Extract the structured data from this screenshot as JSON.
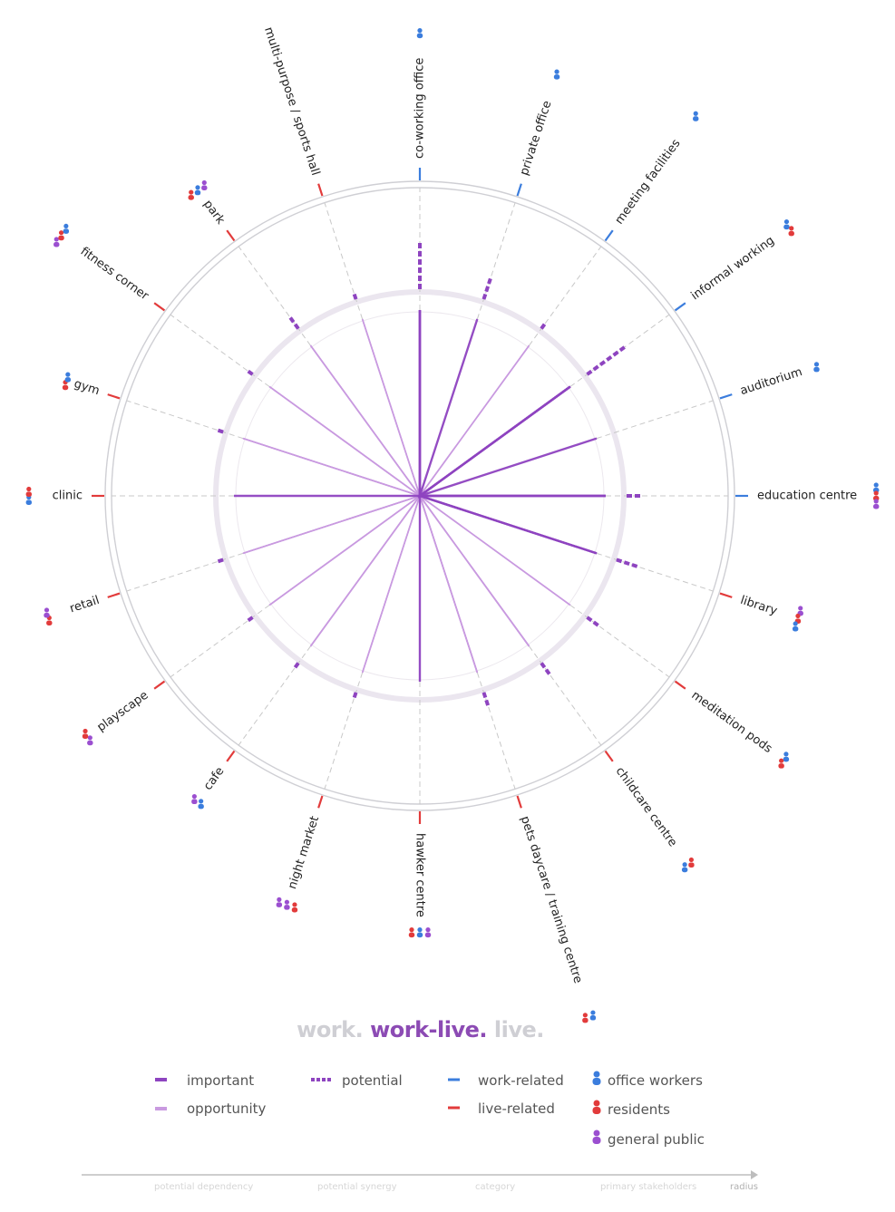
{
  "categories": [
    {
      "label": "co-working office",
      "cat": "work",
      "s": [
        "o"
      ]
    },
    {
      "label": "private office",
      "cat": "work",
      "s": [
        "o"
      ]
    },
    {
      "label": "meeting facilities",
      "cat": "work",
      "s": [
        "o"
      ]
    },
    {
      "label": "informal working",
      "cat": "work",
      "s": [
        "o",
        "r"
      ]
    },
    {
      "label": "auditorium",
      "cat": "work",
      "s": [
        "o"
      ]
    },
    {
      "label": "education centre",
      "cat": "work",
      "s": [
        "o",
        "r",
        "g"
      ]
    },
    {
      "label": "library",
      "cat": "live",
      "s": [
        "g",
        "r",
        "o"
      ]
    },
    {
      "label": "meditation pods",
      "cat": "live",
      "s": [
        "o",
        "r"
      ]
    },
    {
      "label": "childcare centre",
      "cat": "live",
      "s": [
        "r",
        "o"
      ]
    },
    {
      "label": "pets daycare / training centre",
      "cat": "live",
      "s": [
        "o",
        "r"
      ]
    },
    {
      "label": "hawker centre",
      "cat": "live",
      "s": [
        "g",
        "o",
        "r"
      ]
    },
    {
      "label": "night market",
      "cat": "live",
      "s": [
        "r",
        "g",
        "g"
      ]
    },
    {
      "label": "cafe",
      "cat": "live",
      "s": [
        "o",
        "g"
      ]
    },
    {
      "label": "playscape",
      "cat": "live",
      "s": [
        "g",
        "r"
      ]
    },
    {
      "label": "retail",
      "cat": "live",
      "s": [
        "r",
        "g"
      ]
    },
    {
      "label": "clinic",
      "cat": "live",
      "s": [
        "o",
        "r"
      ]
    },
    {
      "label": "gym",
      "cat": "live",
      "s": [
        "r",
        "o"
      ]
    },
    {
      "label": "fitness corner",
      "cat": "live",
      "s": [
        "g",
        "r",
        "o"
      ]
    },
    {
      "label": "park",
      "cat": "live",
      "s": [
        "r",
        "o",
        "g"
      ]
    },
    {
      "label": "multi-purpose / sports hall",
      "cat": "live",
      "s": [
        "r",
        "o"
      ]
    }
  ],
  "title": {
    "work": "work.",
    "worklive": "work-live.",
    "live": "live."
  },
  "legend": {
    "important": "important",
    "opportunity": "opportunity",
    "potential": "potential",
    "work_related": "work-related",
    "live_related": "live-related",
    "office_workers": "office workers",
    "residents": "residents",
    "general_public": "general public"
  },
  "axis": {
    "potential_dependency": "potential dependency",
    "potential_synergy": "potential synergy",
    "category": "category",
    "primary_stakeholders": "primary stakeholders",
    "radius": "radius"
  },
  "colors": {
    "important": "#8e44c0",
    "opportunity": "#c99ae0",
    "work": "#3b7ddd",
    "live": "#e23b3b",
    "office": "#3b7ddd",
    "resident": "#e23b3b",
    "public": "#9b4fd0",
    "ring": "#cfcfd4",
    "spoke": "#c8c8c8"
  },
  "potential_bars": [
    6,
    3,
    1,
    6,
    0,
    2,
    3,
    2,
    2,
    2,
    0,
    1,
    1,
    1,
    1,
    0,
    1,
    1,
    2,
    1
  ],
  "links_strong": [
    [
      0,
      5
    ],
    [
      3,
      5
    ],
    [
      3,
      6
    ],
    [
      0,
      4
    ],
    [
      0,
      3
    ],
    [
      1,
      3
    ],
    [
      3,
      10
    ],
    [
      5,
      6
    ],
    [
      0,
      6
    ],
    [
      3,
      15
    ]
  ],
  "links_weak": [
    [
      0,
      9
    ],
    [
      1,
      8
    ],
    [
      1,
      10
    ],
    [
      2,
      9
    ],
    [
      3,
      9
    ],
    [
      4,
      11
    ],
    [
      5,
      8
    ],
    [
      5,
      12
    ],
    [
      6,
      12
    ],
    [
      7,
      13
    ],
    [
      7,
      14
    ],
    [
      8,
      15
    ],
    [
      9,
      16
    ],
    [
      10,
      17
    ],
    [
      11,
      18
    ],
    [
      12,
      19
    ],
    [
      13,
      0
    ],
    [
      14,
      2
    ],
    [
      15,
      1
    ],
    [
      16,
      3
    ],
    [
      17,
      4
    ],
    [
      18,
      5
    ],
    [
      19,
      6
    ],
    [
      2,
      12
    ],
    [
      4,
      13
    ],
    [
      6,
      14
    ],
    [
      8,
      17
    ],
    [
      11,
      16
    ],
    [
      14,
      18
    ],
    [
      19,
      10
    ],
    [
      17,
      7
    ],
    [
      13,
      9
    ],
    [
      18,
      1
    ],
    [
      16,
      8
    ]
  ]
}
